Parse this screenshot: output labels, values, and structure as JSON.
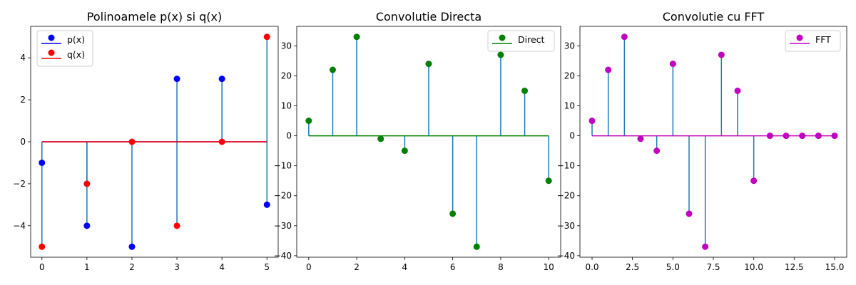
{
  "chart_data": [
    {
      "type": "stem",
      "title": "Polinoamele p(x) si q(x)",
      "xlim": [
        -0.25,
        5.25
      ],
      "ylim": [
        -5.5,
        5.5
      ],
      "xticks": [
        0,
        1,
        2,
        3,
        4,
        5
      ],
      "xtick_labels": [
        "0",
        "1",
        "2",
        "3",
        "4",
        "5"
      ],
      "yticks": [
        -4,
        -2,
        0,
        2,
        4
      ],
      "ytick_labels": [
        "−4",
        "−2",
        "0",
        "2",
        "4"
      ],
      "legend": "top-left",
      "stem_color": "#1f77b4",
      "series": [
        {
          "name": "p(x)",
          "color": "#0000ff",
          "baseline_color": "#0000ff",
          "x": [
            0,
            1,
            2,
            3,
            4,
            5
          ],
          "values": [
            -1,
            -4,
            -5,
            3,
            3,
            -3
          ]
        },
        {
          "name": "q(x)",
          "color": "#ff0000",
          "baseline_color": "#ff0000",
          "x": [
            0,
            1,
            2,
            3,
            4,
            5
          ],
          "values": [
            -5,
            -2,
            0,
            -4,
            0,
            5
          ]
        }
      ]
    },
    {
      "type": "stem",
      "title": "Convolutie Directa",
      "xlim": [
        -0.5,
        10.5
      ],
      "ylim": [
        -40.5,
        36.5
      ],
      "xticks": [
        0,
        2,
        4,
        6,
        8,
        10
      ],
      "xtick_labels": [
        "0",
        "2",
        "4",
        "6",
        "8",
        "10"
      ],
      "yticks": [
        -40,
        -30,
        -20,
        -10,
        0,
        10,
        20,
        30
      ],
      "ytick_labels": [
        "−40",
        "−30",
        "−20",
        "−10",
        "0",
        "10",
        "20",
        "30"
      ],
      "legend": "top-right",
      "stem_color": "#1f77b4",
      "series": [
        {
          "name": "Direct",
          "color": "#008000",
          "baseline_color": "#008000",
          "x": [
            0,
            1,
            2,
            3,
            4,
            5,
            6,
            7,
            8,
            9,
            10
          ],
          "values": [
            5,
            22,
            33,
            -1,
            -5,
            24,
            -26,
            -37,
            27,
            15,
            -15
          ]
        }
      ]
    },
    {
      "type": "stem",
      "title": "Convolutie cu FFT",
      "xlim": [
        -0.75,
        15.75
      ],
      "ylim": [
        -40.5,
        36.5
      ],
      "xticks": [
        0,
        2.5,
        5,
        7.5,
        10,
        12.5,
        15
      ],
      "xtick_labels": [
        "0.0",
        "2.5",
        "5.0",
        "7.5",
        "10.0",
        "12.5",
        "15.0"
      ],
      "yticks": [
        -40,
        -30,
        -20,
        -10,
        0,
        10,
        20,
        30
      ],
      "ytick_labels": [
        "−40",
        "−30",
        "−20",
        "−10",
        "0",
        "10",
        "20",
        "30"
      ],
      "legend": "top-right",
      "stem_color": "#1f77b4",
      "series": [
        {
          "name": "FFT",
          "color": "#bf00bf",
          "baseline_color": "#bf00bf",
          "x": [
            0,
            1,
            2,
            3,
            4,
            5,
            6,
            7,
            8,
            9,
            10,
            11,
            12,
            13,
            14,
            15
          ],
          "values": [
            5,
            22,
            33,
            -1,
            -5,
            24,
            -26,
            -37,
            27,
            15,
            -15,
            0,
            0,
            0,
            0,
            0
          ]
        }
      ]
    }
  ]
}
